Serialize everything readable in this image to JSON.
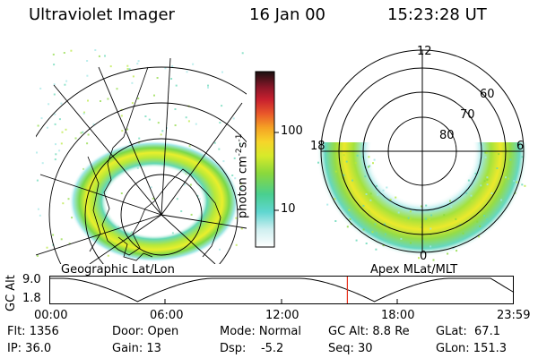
{
  "header": {
    "instrument": "Ultraviolet Imager",
    "date": "16 Jan 00",
    "time": "15:23:28 UT"
  },
  "geo_panel": {
    "label": "Geographic Lat/Lon"
  },
  "mag_panel": {
    "label": "Apex MLat/MLT",
    "mlt_labels": {
      "top": "12",
      "left": "18",
      "right": "6",
      "bottom": "0"
    },
    "lat_labels": [
      "60",
      "70",
      "80"
    ]
  },
  "colorbar": {
    "unit_label": "photon cm",
    "unit_exp1": "-2",
    "unit_mid": "s",
    "unit_exp2": "-1",
    "ticks": [
      "100",
      "10"
    ],
    "scale": "log"
  },
  "altitude_plot": {
    "ylabel": "GC Alt",
    "y_ticks": [
      "9.0",
      "1.8"
    ],
    "x_ticks": [
      "00:00",
      "06:00",
      "12:00",
      "18:00",
      "23:59"
    ],
    "marker_time": "15:23:28",
    "marker_color": "#e8301c"
  },
  "status": {
    "flt": "Flt: 1356",
    "door": "Door: Open",
    "mode": "Mode: Normal",
    "gc_alt": "GC Alt: 8.8 Re",
    "glat": "GLat:  67.1",
    "ip": "IP: 36.0",
    "gain": "Gain: 13",
    "dsp": "Dsp:    -5.2",
    "seq": "Seq: 30",
    "glon": "GLon: 151.3"
  }
}
